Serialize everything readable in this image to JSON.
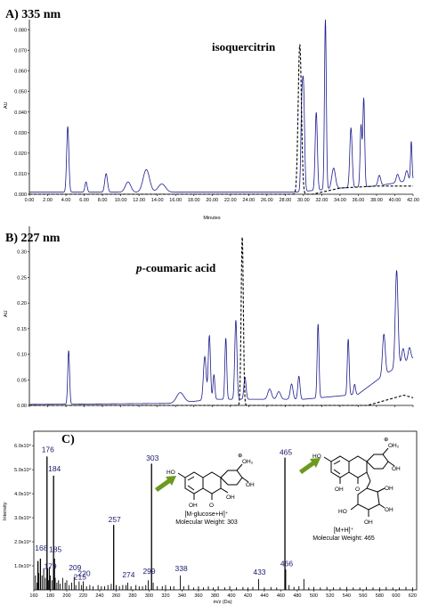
{
  "chart_data": [
    {
      "type": "line",
      "panel": "A) 335 nm",
      "xlabel": "Minutes",
      "ylabel": "AU",
      "xlim": [
        0,
        42
      ],
      "ylim": [
        0,
        0.085
      ],
      "x_ticks": [
        "0.00",
        "2.00",
        "4.00",
        "6.00",
        "8.00",
        "10.00",
        "12.00",
        "14.00",
        "16.00",
        "18.00",
        "20.00",
        "22.00",
        "24.00",
        "26.00",
        "28.00",
        "30.00",
        "32.00",
        "34.00",
        "36.00",
        "38.00",
        "40.00",
        "42.00"
      ],
      "y_ticks": [
        "0.000",
        "0.010",
        "0.020",
        "0.030",
        "0.040",
        "0.050",
        "0.060",
        "0.070",
        "0.080"
      ],
      "annotation": "isoquercitrin",
      "series": [
        {
          "color": "#1c1c8c",
          "style": "solid",
          "baseline": 0.001,
          "peaks": [
            [
              4.2,
              0.032,
              0.12
            ],
            [
              6.2,
              0.005,
              0.12
            ],
            [
              8.4,
              0.009,
              0.15
            ],
            [
              10.8,
              0.005,
              0.3
            ],
            [
              12.8,
              0.011,
              0.35
            ],
            [
              14.5,
              0.004,
              0.4
            ],
            [
              29.8,
              0.032,
              0.1
            ],
            [
              30.0,
              0.05,
              0.12
            ],
            [
              31.4,
              0.038,
              0.12
            ],
            [
              32.4,
              0.083,
              0.1
            ],
            [
              33.3,
              0.01,
              0.2
            ],
            [
              35.2,
              0.029,
              0.13
            ],
            [
              36.6,
              0.043,
              0.1
            ],
            [
              36.3,
              0.03,
              0.1
            ],
            [
              38.3,
              0.005,
              0.15
            ],
            [
              40.3,
              0.004,
              0.15
            ],
            [
              41.3,
              0.005,
              0.15
            ],
            [
              41.8,
              0.019,
              0.08
            ]
          ],
          "drift": [
            [
              0,
              0.0
            ],
            [
              29,
              0.0
            ],
            [
              34,
              0.002
            ],
            [
              38,
              0.003
            ],
            [
              42,
              0.006
            ]
          ]
        },
        {
          "color": "#000000",
          "style": "dashed",
          "baseline": 0.0,
          "peaks": [
            [
              29.6,
              0.073,
              0.18
            ]
          ],
          "drift": [
            [
              0,
              0.0
            ],
            [
              31,
              0.0
            ],
            [
              34,
              0.003
            ],
            [
              38,
              0.004
            ],
            [
              42,
              0.004
            ]
          ]
        }
      ]
    },
    {
      "type": "line",
      "panel": "B) 227 nm",
      "xlabel": "",
      "ylabel": "AU",
      "xlim": [
        0,
        42
      ],
      "ylim": [
        0,
        0.35
      ],
      "y_ticks": [
        "0.00",
        "0.05",
        "0.10",
        "0.15",
        "0.20",
        "0.25",
        "0.30"
      ],
      "annotation": "p-coumaric acid",
      "annotation_prefix": "p",
      "annotation_rest": "-coumaric acid",
      "series": [
        {
          "color": "#1c1c8c",
          "style": "solid",
          "baseline": 0.002,
          "peaks": [
            [
              4.3,
              0.105,
              0.1
            ],
            [
              16.5,
              0.02,
              0.4
            ],
            [
              19.2,
              0.085,
              0.15
            ],
            [
              19.7,
              0.125,
              0.12
            ],
            [
              20.2,
              0.048,
              0.1
            ],
            [
              21.5,
              0.12,
              0.1
            ],
            [
              22.6,
              0.155,
              0.12
            ],
            [
              23.6,
              0.043,
              0.12
            ],
            [
              26.3,
              0.02,
              0.2
            ],
            [
              27.3,
              0.015,
              0.2
            ],
            [
              28.7,
              0.03,
              0.15
            ],
            [
              29.5,
              0.045,
              0.12
            ],
            [
              31.6,
              0.145,
              0.1
            ],
            [
              34.9,
              0.11,
              0.1
            ],
            [
              35.6,
              0.02,
              0.1
            ],
            [
              38.8,
              0.08,
              0.15
            ],
            [
              40.2,
              0.19,
              0.15
            ],
            [
              40.9,
              0.03,
              0.15
            ],
            [
              41.6,
              0.025,
              0.15
            ]
          ],
          "drift": [
            [
              0,
              0.0
            ],
            [
              16,
              0.002
            ],
            [
              20,
              0.01
            ],
            [
              30,
              0.01
            ],
            [
              36,
              0.02
            ],
            [
              39,
              0.06
            ],
            [
              42,
              0.09
            ]
          ]
        },
        {
          "color": "#000000",
          "style": "dashed",
          "baseline": 0.0,
          "peaks": [
            [
              23.3,
              0.33,
              0.12
            ]
          ],
          "drift": [
            [
              0,
              0.0
            ],
            [
              37,
              0.0
            ],
            [
              39,
              0.01
            ],
            [
              41,
              0.02
            ],
            [
              42,
              0.015
            ]
          ]
        }
      ]
    },
    {
      "type": "bar",
      "panel": "C)",
      "xlabel": "m/z (Da)",
      "ylabel": "Intensity",
      "xlim": [
        160,
        625
      ],
      "ylim": [
        0,
        6.6
      ],
      "x_ticks": [
        "160",
        "180",
        "200",
        "220",
        "240",
        "260",
        "280",
        "300",
        "320",
        "340",
        "360",
        "380",
        "400",
        "420",
        "440",
        "460",
        "480",
        "500",
        "520",
        "540",
        "560",
        "580",
        "600",
        "620"
      ],
      "y_ticks": [
        "1.0x10⁴",
        "2.0x10⁴",
        "3.0x10⁴",
        "4.0x10⁴",
        "5.0x10⁴",
        "6.0x10⁴"
      ],
      "labels": [
        {
          "mz": "168",
          "x": 168,
          "y": 1.55
        },
        {
          "mz": "176",
          "x": 176,
          "y": 5.65
        },
        {
          "mz": "179",
          "x": 179,
          "y": 0.8
        },
        {
          "mz": "184",
          "x": 184,
          "y": 4.85
        },
        {
          "mz": "185",
          "x": 185,
          "y": 1.5
        },
        {
          "mz": "209",
          "x": 209,
          "y": 0.75
        },
        {
          "mz": "215",
          "x": 215,
          "y": 0.35
        },
        {
          "mz": "220",
          "x": 220,
          "y": 0.5
        },
        {
          "mz": "257",
          "x": 257,
          "y": 2.75
        },
        {
          "mz": "274",
          "x": 274,
          "y": 0.45
        },
        {
          "mz": "299",
          "x": 299,
          "y": 0.6
        },
        {
          "mz": "303",
          "x": 303,
          "y": 5.3
        },
        {
          "mz": "338",
          "x": 338,
          "y": 0.7
        },
        {
          "mz": "433",
          "x": 433,
          "y": 0.55
        },
        {
          "mz": "465",
          "x": 465,
          "y": 5.55
        },
        {
          "mz": "466",
          "x": 466,
          "y": 0.9
        }
      ],
      "peaks": [
        [
          162,
          0.6
        ],
        [
          164,
          0.3
        ],
        [
          165,
          1.2
        ],
        [
          166,
          0.7
        ],
        [
          168,
          1.3
        ],
        [
          170,
          0.6
        ],
        [
          172,
          0.9
        ],
        [
          174,
          0.5
        ],
        [
          176,
          5.55
        ],
        [
          177,
          0.9
        ],
        [
          178,
          0.4
        ],
        [
          179,
          0.95
        ],
        [
          180,
          0.6
        ],
        [
          182,
          0.4
        ],
        [
          184,
          4.75
        ],
        [
          185,
          1.3
        ],
        [
          186,
          0.5
        ],
        [
          188,
          0.3
        ],
        [
          190,
          0.4
        ],
        [
          192,
          0.25
        ],
        [
          195,
          0.5
        ],
        [
          198,
          0.3
        ],
        [
          200,
          0.4
        ],
        [
          203,
          0.2
        ],
        [
          206,
          0.3
        ],
        [
          209,
          0.55
        ],
        [
          211,
          0.2
        ],
        [
          215,
          0.35
        ],
        [
          218,
          0.2
        ],
        [
          220,
          0.35
        ],
        [
          224,
          0.15
        ],
        [
          228,
          0.2
        ],
        [
          232,
          0.15
        ],
        [
          238,
          0.2
        ],
        [
          242,
          0.15
        ],
        [
          246,
          0.15
        ],
        [
          250,
          0.2
        ],
        [
          254,
          0.25
        ],
        [
          257,
          2.7
        ],
        [
          260,
          0.2
        ],
        [
          264,
          0.15
        ],
        [
          268,
          0.2
        ],
        [
          272,
          0.2
        ],
        [
          274,
          0.3
        ],
        [
          278,
          0.15
        ],
        [
          284,
          0.2
        ],
        [
          288,
          0.15
        ],
        [
          292,
          0.15
        ],
        [
          296,
          0.2
        ],
        [
          299,
          0.4
        ],
        [
          303,
          5.25
        ],
        [
          305,
          0.3
        ],
        [
          310,
          0.15
        ],
        [
          316,
          0.15
        ],
        [
          320,
          0.2
        ],
        [
          326,
          0.15
        ],
        [
          330,
          0.15
        ],
        [
          338,
          0.6
        ],
        [
          342,
          0.15
        ],
        [
          348,
          0.2
        ],
        [
          354,
          0.1
        ],
        [
          360,
          0.15
        ],
        [
          366,
          0.1
        ],
        [
          372,
          0.15
        ],
        [
          378,
          0.1
        ],
        [
          384,
          0.15
        ],
        [
          392,
          0.1
        ],
        [
          398,
          0.15
        ],
        [
          406,
          0.1
        ],
        [
          414,
          0.12
        ],
        [
          420,
          0.1
        ],
        [
          426,
          0.12
        ],
        [
          433,
          0.45
        ],
        [
          440,
          0.1
        ],
        [
          448,
          0.12
        ],
        [
          455,
          0.1
        ],
        [
          465,
          5.5
        ],
        [
          466,
          0.85
        ],
        [
          470,
          0.2
        ],
        [
          476,
          0.12
        ],
        [
          482,
          0.15
        ],
        [
          488,
          0.45
        ],
        [
          494,
          0.1
        ],
        [
          500,
          0.12
        ],
        [
          508,
          0.1
        ],
        [
          516,
          0.12
        ],
        [
          524,
          0.1
        ],
        [
          532,
          0.1
        ],
        [
          540,
          0.12
        ],
        [
          548,
          0.1
        ],
        [
          556,
          0.1
        ],
        [
          564,
          0.12
        ],
        [
          572,
          0.1
        ],
        [
          580,
          0.1
        ],
        [
          588,
          0.12
        ],
        [
          596,
          0.1
        ],
        [
          604,
          0.1
        ],
        [
          612,
          0.12
        ],
        [
          620,
          0.1
        ]
      ]
    }
  ],
  "structures": [
    {
      "name": "aglycone",
      "label_line1": "[M-glucose+H]⁺",
      "label_line2": "Molecular Weight: 303",
      "atoms": {
        "ho_left": "HO",
        "oh_bottom": "OH",
        "o_ketone": "O",
        "oh_ring": "OH",
        "oh2_plus": "OH₂",
        "oh_right": "OH",
        "plus": "⊕"
      }
    },
    {
      "name": "isoquercitrin",
      "label_line1": "[M+H]⁺",
      "label_line2": "Molecular Weight: 465",
      "atoms": {
        "ho_left": "HO",
        "oh_bottom": "OH",
        "o_ketone": "O",
        "oh2_plus": "OH₂",
        "oh_right": "OH",
        "plus": "⊕",
        "sugar_oh1": "OH",
        "sugar_oh2": "OH",
        "sugar_oh3": "OH",
        "sugar_ho": "HO"
      }
    }
  ],
  "colors": {
    "trace": "#1c1c8c",
    "dashed": "#000000",
    "arrow": "#6b9a1f",
    "peaklabel": "#1a1a6e"
  }
}
